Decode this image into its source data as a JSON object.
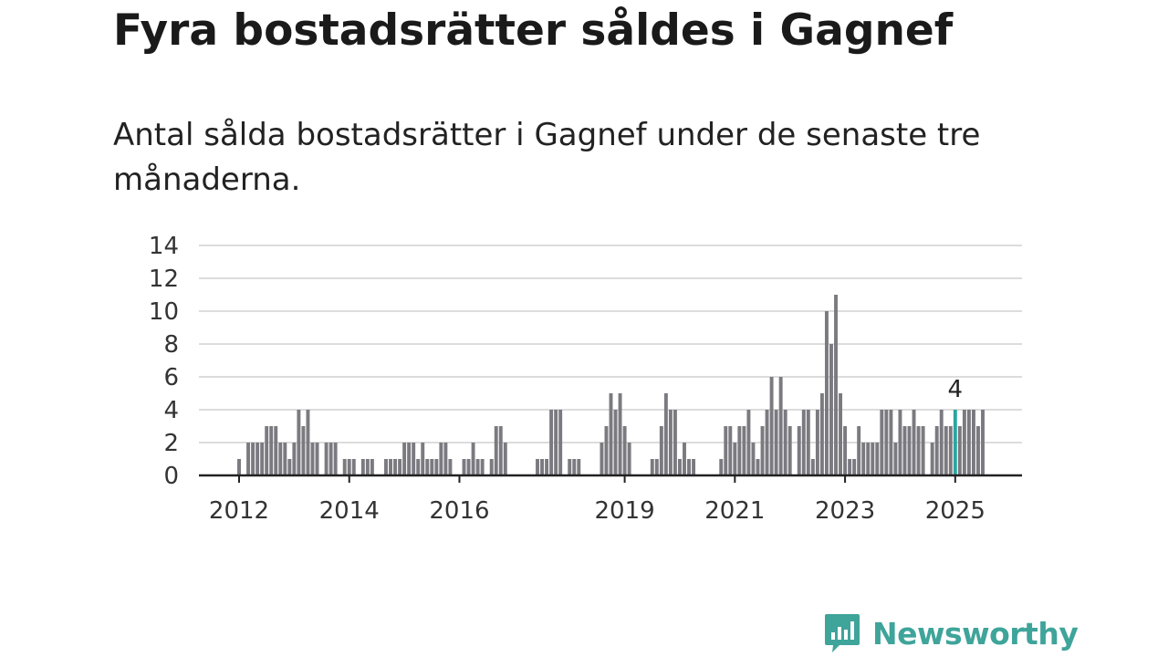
{
  "header": {
    "title": "Fyra bostadsrätter såldes i Gagnef",
    "subtitle": "Antal sålda bostadsrätter i Gagnef under de senaste tre månaderna."
  },
  "brand": {
    "name": "Newsworthy",
    "color": "#3fa49a",
    "icon": "newsworthy-chart-icon"
  },
  "chart_data": {
    "type": "bar",
    "title": "Fyra bostadsrätter såldes i Gagnef",
    "subtitle": "Antal sålda bostadsrätter i Gagnef under de senaste tre månaderna.",
    "xlabel": "",
    "ylabel": "",
    "ylim": [
      0,
      14
    ],
    "y_ticks": [
      0,
      2,
      4,
      6,
      8,
      10,
      12,
      14
    ],
    "x_ticks": [
      {
        "label": "2012",
        "index": 0
      },
      {
        "label": "2014",
        "index": 24
      },
      {
        "label": "2016",
        "index": 48
      },
      {
        "label": "2019",
        "index": 84
      },
      {
        "label": "2021",
        "index": 108
      },
      {
        "label": "2023",
        "index": 132
      },
      {
        "label": "2025",
        "index": 156
      }
    ],
    "grid": true,
    "bar_color": "#7a7a80",
    "highlight_color": "#2aa6a0",
    "highlight_index": 156,
    "annotation": "4",
    "series": [
      {
        "values": [
          1,
          0,
          2,
          2,
          2,
          2,
          3,
          3,
          3,
          2,
          2,
          1,
          2,
          4,
          3,
          4,
          2,
          2,
          0,
          2,
          2,
          2,
          0,
          1,
          1,
          1,
          0,
          1,
          1,
          1,
          0,
          0,
          1,
          1,
          1,
          1,
          2,
          2,
          2,
          1,
          2,
          1,
          1,
          1,
          2,
          2,
          1,
          0,
          0,
          1,
          1,
          2,
          1,
          1,
          0,
          1,
          3,
          3,
          2,
          0,
          0,
          0,
          0,
          0,
          0,
          1,
          1,
          1,
          4,
          4,
          4,
          0,
          1,
          1,
          1,
          0,
          0,
          0,
          0,
          2,
          3,
          5,
          4,
          5,
          3,
          2,
          0,
          0,
          0,
          0,
          1,
          1,
          3,
          5,
          4,
          4,
          1,
          2,
          1,
          1,
          0,
          0,
          0,
          0,
          0,
          1,
          3,
          3,
          2,
          3,
          3,
          4,
          2,
          1,
          3,
          4,
          6,
          4,
          6,
          4,
          3,
          0,
          3,
          4,
          4,
          1,
          4,
          5,
          10,
          8,
          11,
          5,
          3,
          1,
          1,
          3,
          2,
          2,
          2,
          2,
          4,
          4,
          4,
          2,
          4,
          3,
          3,
          4,
          3,
          3,
          0,
          2,
          3,
          4,
          3,
          3,
          4,
          3,
          4,
          4,
          4,
          3,
          4
        ]
      }
    ]
  }
}
